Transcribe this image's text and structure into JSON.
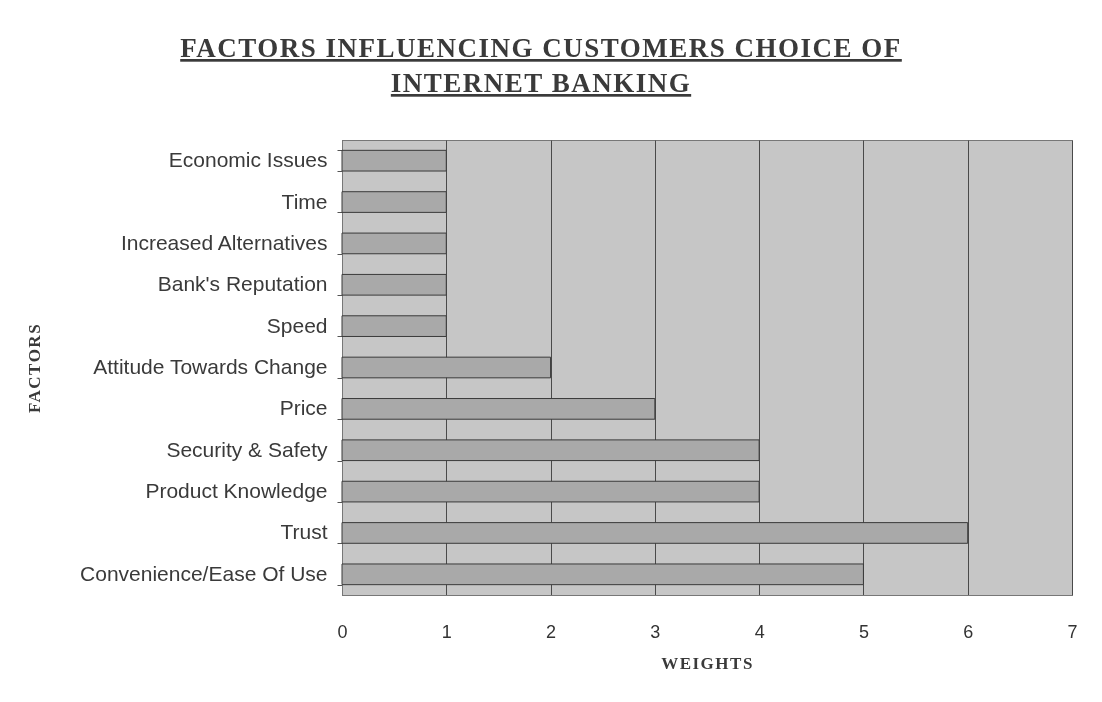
{
  "chart_data": {
    "type": "bar",
    "orientation": "horizontal",
    "title": "FACTORS INFLUENCING CUSTOMERS CHOICE OF INTERNET BANKING",
    "xlabel": "WEIGHTS",
    "ylabel": "FACTORS",
    "categories": [
      "Economic Issues",
      "Time",
      "Increased Alternatives",
      "Bank's Reputation",
      "Speed",
      "Attitude Towards Change",
      "Price",
      "Security & Safety",
      "Product Knowledge",
      "Trust",
      "Convenience/Ease Of Use"
    ],
    "values": [
      1,
      1,
      1,
      1,
      1,
      2,
      3,
      4,
      4,
      6,
      5
    ],
    "color": "#a9a9a9",
    "xlim": [
      0,
      7
    ],
    "xticks": [
      0,
      1,
      2,
      3,
      4,
      5,
      6,
      7
    ],
    "grid": "x"
  }
}
